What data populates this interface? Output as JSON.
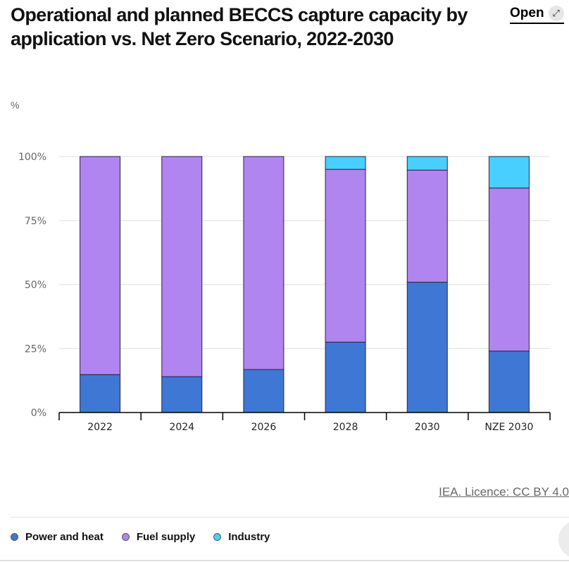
{
  "header": {
    "title": "Operational and planned BECCS capture capacity by application vs. Net Zero Scenario, 2022-2030",
    "open_label": "Open",
    "open_icon": "expand-arrow-icon"
  },
  "footer": {
    "source": "IEA. Licence: CC BY 4.0"
  },
  "chart_data": {
    "type": "bar",
    "stacked": true,
    "title": "Operational and planned BECCS capture capacity by application vs. Net Zero Scenario, 2022-2030",
    "xlabel": "",
    "ylabel": "%",
    "ylim": [
      0,
      100
    ],
    "yticks": [
      0,
      25,
      50,
      75,
      100
    ],
    "ytick_labels": [
      "0%",
      "25%",
      "50%",
      "75%",
      "100%"
    ],
    "grid": true,
    "legend_position": "bottom-left",
    "categories": [
      "2022",
      "2024",
      "2026",
      "2028",
      "2030",
      "NZE 2030"
    ],
    "series": [
      {
        "name": "Power and heat",
        "color": "#3e78d4",
        "values": [
          14.8,
          14.0,
          16.8,
          27.5,
          50.9,
          24.0
        ]
      },
      {
        "name": "Fuel supply",
        "color": "#b085ef",
        "values": [
          85.2,
          86.0,
          83.2,
          67.5,
          43.8,
          63.7
        ]
      },
      {
        "name": "Industry",
        "color": "#48cfff",
        "values": [
          0,
          0,
          0,
          5.0,
          5.3,
          12.3
        ]
      }
    ]
  }
}
